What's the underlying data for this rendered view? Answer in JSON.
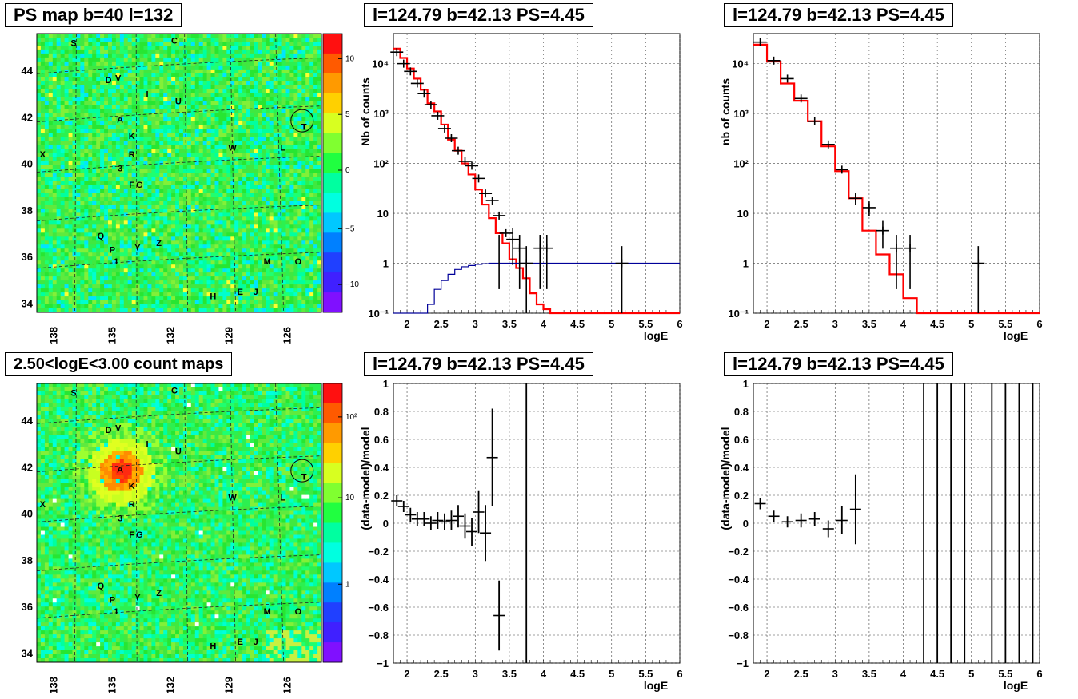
{
  "maps": [
    {
      "title": "PS map b=40 l=132",
      "lon_ticks": [
        "138",
        "135",
        "132",
        "129",
        "126"
      ],
      "lat_ticks": [
        "44",
        "42",
        "40",
        "38",
        "36",
        "34"
      ],
      "colorbar": {
        "type": "linear",
        "ticks": [
          "10",
          "5",
          "0",
          "−5",
          "−10"
        ],
        "range": [
          -12,
          12
        ]
      },
      "base_color": "#27e632",
      "blob": false
    },
    {
      "title": "2.50<logE<3.00 count maps",
      "lon_ticks": [
        "138",
        "135",
        "132",
        "129",
        "126"
      ],
      "lat_ticks": [
        "44",
        "42",
        "40",
        "38",
        "36",
        "34"
      ],
      "colorbar": {
        "type": "log",
        "ticks": [
          "10²",
          "10",
          "1"
        ]
      },
      "base_color": "#3ee13a",
      "blob": true
    }
  ],
  "source_labels": [
    {
      "t": "S",
      "lon": 137.4,
      "lat": 45.3
    },
    {
      "t": "C",
      "lon": 132.2,
      "lat": 45.4
    },
    {
      "t": "D",
      "lon": 135.6,
      "lat": 43.7
    },
    {
      "t": "V",
      "lon": 135.1,
      "lat": 43.8
    },
    {
      "t": "I",
      "lon": 133.6,
      "lat": 43.1
    },
    {
      "t": "U",
      "lon": 132.0,
      "lat": 42.8
    },
    {
      "t": "A",
      "lon": 135.0,
      "lat": 42.0
    },
    {
      "t": "T",
      "lon": 125.5,
      "lat": 41.7
    },
    {
      "t": "K",
      "lon": 134.4,
      "lat": 41.3
    },
    {
      "t": "W",
      "lon": 129.2,
      "lat": 40.8
    },
    {
      "t": "L",
      "lon": 126.6,
      "lat": 40.8
    },
    {
      "t": "R",
      "lon": 134.4,
      "lat": 40.5
    },
    {
      "t": "3",
      "lon": 135.0,
      "lat": 39.9
    },
    {
      "t": "F",
      "lon": 134.4,
      "lat": 39.2
    },
    {
      "t": "G",
      "lon": 134.0,
      "lat": 39.2
    },
    {
      "t": "Q",
      "lon": 136.0,
      "lat": 37.0
    },
    {
      "t": "P",
      "lon": 135.4,
      "lat": 36.4
    },
    {
      "t": "Y",
      "lon": 134.1,
      "lat": 36.5
    },
    {
      "t": "Z",
      "lon": 133.0,
      "lat": 36.7
    },
    {
      "t": "1",
      "lon": 135.2,
      "lat": 35.9
    },
    {
      "t": "M",
      "lon": 127.4,
      "lat": 35.9
    },
    {
      "t": "O",
      "lon": 125.8,
      "lat": 35.9
    },
    {
      "t": "E",
      "lon": 128.8,
      "lat": 34.6
    },
    {
      "t": "J",
      "lon": 128.0,
      "lat": 34.6
    },
    {
      "t": "H",
      "lon": 130.2,
      "lat": 34.4
    },
    {
      "t": "X",
      "lon": 139.0,
      "lat": 40.5
    }
  ],
  "chart_data": [
    {
      "type": "line",
      "title": "l=124.79 b=42.13 PS=4.45",
      "xlabel": "logE",
      "ylabel": "Nb of counts",
      "xlim": [
        1.8,
        6
      ],
      "ylim": [
        0.1,
        40000
      ],
      "yscale": "log",
      "grid": true,
      "yticks": [
        "10⁻¹",
        "1",
        "10",
        "10²",
        "10³",
        "10⁴"
      ],
      "xticks": [
        "2",
        "2.5",
        "3",
        "3.5",
        "4",
        "4.5",
        "5",
        "5.5",
        "6"
      ],
      "series": [
        {
          "color": "#ff0000",
          "style": "step",
          "edges": [
            1.8,
            1.9,
            2.0,
            2.1,
            2.2,
            2.3,
            2.4,
            2.5,
            2.6,
            2.7,
            2.8,
            2.9,
            3.0,
            3.1,
            3.2,
            3.3,
            3.4,
            3.5,
            3.6,
            3.7,
            3.8,
            3.9,
            4.0,
            4.1,
            4.2,
            6.0
          ],
          "values": [
            20000,
            13000,
            8000,
            5000,
            3000,
            1600,
            1100,
            600,
            300,
            180,
            100,
            60,
            30,
            15,
            8,
            4,
            2.5,
            1.2,
            0.8,
            0.5,
            0.25,
            0.15,
            0.12,
            0.1,
            0.1
          ]
        },
        {
          "color": "#000099",
          "style": "step",
          "edges": [
            1.8,
            2.2,
            2.3,
            2.4,
            2.5,
            2.6,
            2.7,
            2.8,
            2.9,
            3.0,
            3.1,
            3.2,
            3.3,
            6.0
          ],
          "values": [
            0.1,
            0.1,
            0.15,
            0.3,
            0.45,
            0.6,
            0.75,
            0.85,
            0.9,
            0.95,
            0.98,
            1.0,
            1.0
          ]
        },
        {
          "color": "#000000",
          "style": "points",
          "points": [
            [
              1.85,
              17000
            ],
            [
              1.95,
              10000
            ],
            [
              2.05,
              7000
            ],
            [
              2.15,
              4000
            ],
            [
              2.25,
              2500
            ],
            [
              2.35,
              1500
            ],
            [
              2.45,
              900
            ],
            [
              2.55,
              500
            ],
            [
              2.65,
              320
            ],
            [
              2.75,
              180
            ],
            [
              2.85,
              110
            ],
            [
              2.95,
              90
            ],
            [
              3.05,
              50
            ],
            [
              3.15,
              25
            ],
            [
              3.25,
              18
            ],
            [
              3.35,
              9
            ],
            [
              3.45,
              4
            ],
            [
              3.55,
              3
            ],
            [
              3.65,
              2
            ],
            [
              3.75,
              1
            ],
            [
              3.95,
              2
            ],
            [
              4.05,
              2
            ],
            [
              5.15,
              1
            ]
          ],
          "err_pts": [
            [
              3.35,
              2
            ],
            [
              3.55,
              3
            ],
            [
              3.65,
              2
            ],
            [
              3.75,
              1
            ],
            [
              3.95,
              2
            ],
            [
              4.05,
              2
            ],
            [
              5.15,
              1
            ]
          ]
        }
      ]
    },
    {
      "type": "line",
      "title": "l=124.79 b=42.13 PS=4.45",
      "xlabel": "logE",
      "ylabel": "nb of counts",
      "xlim": [
        1.8,
        6
      ],
      "ylim": [
        0.1,
        40000
      ],
      "yscale": "log",
      "grid": true,
      "yticks": [
        "10⁻¹",
        "1",
        "10",
        "10²",
        "10³",
        "10⁴"
      ],
      "xticks": [
        "2",
        "2.5",
        "3",
        "3.5",
        "4",
        "4.5",
        "5",
        "5.5",
        "6"
      ],
      "series": [
        {
          "color": "#ff0000",
          "style": "step",
          "edges": [
            1.8,
            2.0,
            2.2,
            2.4,
            2.6,
            2.8,
            3.0,
            3.2,
            3.4,
            3.6,
            3.8,
            4.0,
            4.2,
            6.0
          ],
          "values": [
            24000,
            11000,
            4000,
            1800,
            700,
            220,
            70,
            20,
            4.5,
            1.5,
            0.6,
            0.2,
            0.1
          ]
        },
        {
          "color": "#000000",
          "style": "points",
          "points": [
            [
              1.9,
              27000
            ],
            [
              2.1,
              11500
            ],
            [
              2.3,
              5000
            ],
            [
              2.5,
              2000
            ],
            [
              2.7,
              700
            ],
            [
              2.9,
              240
            ],
            [
              3.1,
              75
            ],
            [
              3.3,
              20
            ],
            [
              3.5,
              13
            ],
            [
              3.7,
              4.5
            ],
            [
              3.9,
              2
            ],
            [
              4.1,
              2
            ],
            [
              5.1,
              1
            ]
          ],
          "err_pts": [
            [
              3.3,
              20
            ],
            [
              3.5,
              13
            ],
            [
              3.7,
              4.5
            ],
            [
              3.9,
              2
            ],
            [
              4.1,
              2
            ],
            [
              5.1,
              1
            ]
          ]
        }
      ]
    },
    {
      "type": "scatter",
      "title": "l=124.79 b=42.13 PS=4.45",
      "xlabel": "logE",
      "ylabel": "(data-model)/model",
      "xlim": [
        1.8,
        6
      ],
      "ylim": [
        -1,
        1
      ],
      "grid": true,
      "yticks": [
        "−1",
        "−0.8",
        "−0.6",
        "−0.4",
        "−0.2",
        "0",
        "0.2",
        "0.4",
        "0.6",
        "0.8",
        "1"
      ],
      "xticks": [
        "2",
        "2.5",
        "3",
        "3.5",
        "4",
        "4.5",
        "5",
        "5.5",
        "6"
      ],
      "points": [
        [
          1.85,
          0.16,
          0.04
        ],
        [
          1.95,
          0.12,
          0.04
        ],
        [
          2.05,
          0.06,
          0.05
        ],
        [
          2.15,
          0.03,
          0.05
        ],
        [
          2.25,
          0.03,
          0.05
        ],
        [
          2.35,
          0.0,
          0.05
        ],
        [
          2.45,
          0.02,
          0.06
        ],
        [
          2.55,
          0.01,
          0.06
        ],
        [
          2.65,
          0.02,
          0.07
        ],
        [
          2.75,
          0.05,
          0.08
        ],
        [
          2.85,
          -0.02,
          0.09
        ],
        [
          2.95,
          -0.06,
          0.1
        ],
        [
          3.05,
          0.08,
          0.15
        ],
        [
          3.15,
          -0.07,
          0.2
        ],
        [
          3.25,
          0.47,
          0.35
        ],
        [
          3.35,
          -0.66,
          0.25
        ],
        [
          3.75,
          0.74,
          2.0
        ]
      ]
    },
    {
      "type": "scatter",
      "title": "l=124.79 b=42.13 PS=4.45",
      "xlabel": "logE",
      "ylabel": "(data-model)/model",
      "xlim": [
        1.8,
        6
      ],
      "ylim": [
        -1,
        1
      ],
      "grid": true,
      "yticks": [
        "−1",
        "−0.8",
        "−0.6",
        "−0.4",
        "−0.2",
        "0",
        "0.2",
        "0.4",
        "0.6",
        "0.8",
        "1"
      ],
      "xticks": [
        "2",
        "2.5",
        "3",
        "3.5",
        "4",
        "4.5",
        "5",
        "5.5",
        "6"
      ],
      "points": [
        [
          1.9,
          0.14,
          0.04
        ],
        [
          2.1,
          0.05,
          0.04
        ],
        [
          2.3,
          0.01,
          0.04
        ],
        [
          2.5,
          0.02,
          0.05
        ],
        [
          2.7,
          0.03,
          0.05
        ],
        [
          2.9,
          -0.04,
          0.06
        ],
        [
          3.1,
          0.02,
          0.1
        ],
        [
          3.3,
          0.1,
          0.25
        ],
        [
          4.3,
          0,
          3
        ],
        [
          4.5,
          0,
          3
        ],
        [
          4.7,
          0,
          3
        ],
        [
          4.9,
          0,
          3
        ],
        [
          5.3,
          0,
          3
        ],
        [
          5.5,
          0,
          3
        ],
        [
          5.7,
          0,
          3
        ],
        [
          5.9,
          0,
          3
        ]
      ]
    }
  ]
}
